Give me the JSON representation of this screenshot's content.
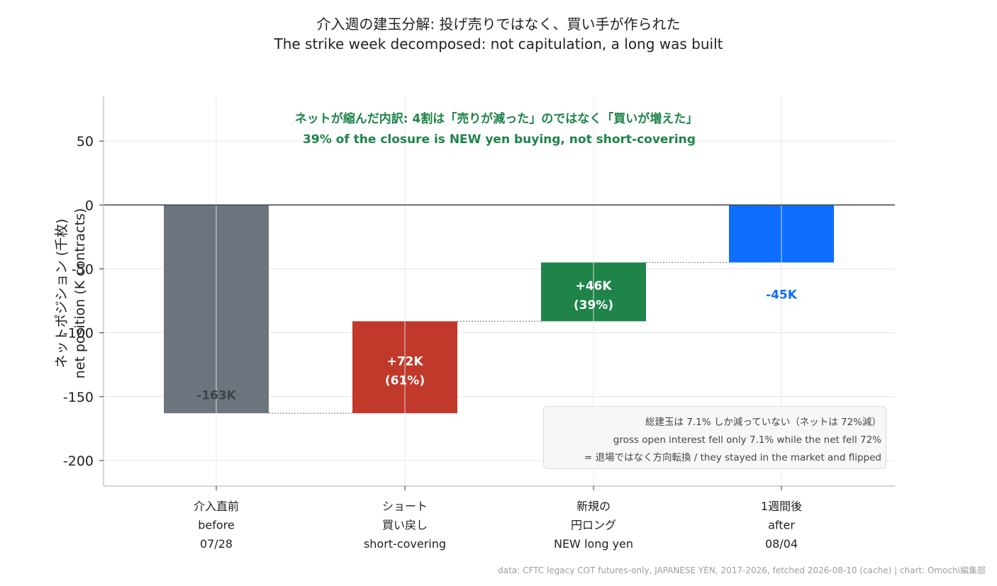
{
  "title": {
    "line1": "介入週の建玉分解: 投げ売りではなく、買い手が作られた",
    "line2": "The strike week decomposed: not capitulation, a long was built"
  },
  "ylabel": {
    "line1": "ネットポジション (千枚)",
    "line2": "net position (K contracts)"
  },
  "source": "data: CFTC legacy COT futures-only, JAPANESE YEN, 2017-2026, fetched 2026-08-10 (cache) | chart: Omochi編集部",
  "note": {
    "line1": "総建玉は 7.1% しか減っていない（ネットは 72%減）",
    "line2": "gross open interest fell only 7.1% while the net fell 72%",
    "line3": "= 退場ではなく方向転換 / they stayed in the market and flipped"
  },
  "colors": {
    "before": "#6c757d",
    "short_covering": "#c0392b",
    "new_long": "#1e8449",
    "after": "#0d6efd",
    "annotation": "#1e8449"
  },
  "chart_data": {
    "type": "waterfall",
    "annotation": {
      "line1": "ネットが縮んだ内訳: 4割は「売りが減った」のではなく「買いが増えた」",
      "line2": "39% of the closure is NEW yen buying, not short-covering"
    },
    "ylim": [
      -220,
      85
    ],
    "yticks": [
      50,
      0,
      -50,
      -100,
      -150,
      -200
    ],
    "grid": true,
    "categories": [
      {
        "lines": [
          "介入直前",
          "before",
          "07/28"
        ]
      },
      {
        "lines": [
          "ショート",
          "買い戻し",
          "short-covering"
        ]
      },
      {
        "lines": [
          "新規の",
          "円ロング",
          "NEW long yen"
        ]
      },
      {
        "lines": [
          "1週間後",
          "after",
          "08/04"
        ]
      }
    ],
    "bars": [
      {
        "key": "before",
        "start": 0,
        "end": -163,
        "label": "-163K",
        "label_color": "#3d4349"
      },
      {
        "key": "short_covering",
        "start": -163,
        "end": -91,
        "label": "+72K",
        "sublabel": "(61%)",
        "label_color": "#ffffff"
      },
      {
        "key": "new_long",
        "start": -91,
        "end": -45,
        "label": "+46K",
        "sublabel": "(39%)",
        "label_color": "#ffffff"
      },
      {
        "key": "after",
        "start": 0,
        "end": -45,
        "label": "-45K",
        "label_color": "#0d6efd"
      }
    ]
  }
}
